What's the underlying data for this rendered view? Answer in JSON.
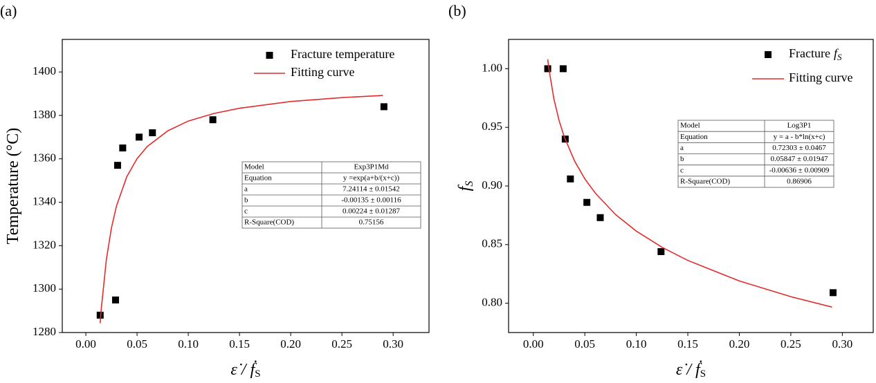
{
  "chart_data": [
    {
      "type": "scatter",
      "panel_label": "(a)",
      "xlabel": {
        "text": "ε̇ / ḟ",
        "sub": "S"
      },
      "ylabel": {
        "text": "Temperature (°C)"
      },
      "xlim": [
        -0.023,
        0.335
      ],
      "xticks": [
        {
          "value": 0,
          "label": "0.00"
        },
        0.05,
        {
          "value": 0.1,
          "label": "0.10"
        },
        0.15,
        {
          "value": 0.2,
          "label": "0.20"
        },
        0.25,
        {
          "value": 0.3,
          "label": "0.30"
        }
      ],
      "ylim": [
        1280,
        1415
      ],
      "yticks": [
        1280,
        1300,
        1320,
        1340,
        1360,
        1380,
        1400
      ],
      "grid": false,
      "legend": "upper right",
      "series": [
        {
          "name": "Fracture temperature",
          "color": "#000000",
          "marker": "square",
          "x": [
            0.014,
            0.029,
            0.031,
            0.036,
            0.052,
            0.065,
            0.124,
            0.291
          ],
          "values": [
            1288,
            1295,
            1357,
            1365,
            1370,
            1372,
            1378,
            1384
          ]
        },
        {
          "name": "Fitting curve",
          "type": "line",
          "color": "#e32b2b",
          "x": [
            0.014,
            0.015,
            0.02,
            0.025,
            0.03,
            0.04,
            0.05,
            0.06,
            0.08,
            0.1,
            0.125,
            0.15,
            0.2,
            0.25,
            0.29
          ],
          "values": [
            1284.3,
            1290.6,
            1313.5,
            1328.2,
            1338.4,
            1351.8,
            1360.1,
            1365.7,
            1372.9,
            1377.4,
            1380.9,
            1383.3,
            1386.4,
            1388.2,
            1389.2
          ]
        }
      ],
      "fit_table": [
        [
          "Model",
          "Exp3P1Md"
        ],
        [
          "Equation",
          "y =exp(a+b/(x+c))"
        ],
        [
          "a",
          "7.24114 ± 0.01542"
        ],
        [
          "b",
          "-0.00135 ± 0.00116"
        ],
        [
          "c",
          "0.00224 ± 0.01287"
        ],
        [
          "R-Square(COD)",
          "0.75156"
        ]
      ]
    },
    {
      "type": "scatter",
      "panel_label": "(b)",
      "xlabel": {
        "text": "ε̇ / ḟ",
        "sub": "S"
      },
      "ylabel": {
        "text": "f",
        "sub": "S"
      },
      "xlim": [
        -0.024,
        0.33
      ],
      "xticks": [
        {
          "value": 0,
          "label": "0.00"
        },
        0.05,
        {
          "value": 0.1,
          "label": "0.10"
        },
        0.15,
        {
          "value": 0.2,
          "label": "0.20"
        },
        0.25,
        {
          "value": 0.3,
          "label": "0.30"
        }
      ],
      "ylim": [
        0.775,
        1.025
      ],
      "yticks": [
        {
          "value": 0.8,
          "label": "0.80"
        },
        0.85,
        {
          "value": 0.9,
          "label": "0.90"
        },
        0.95,
        {
          "value": 1,
          "label": "1.00"
        }
      ],
      "grid": false,
      "legend": "upper right",
      "series": [
        {
          "name": "Fracture",
          "name_math": [
            "f",
            "S"
          ],
          "color": "#000000",
          "marker": "square",
          "x": [
            0.014,
            0.029,
            0.031,
            0.036,
            0.052,
            0.065,
            0.124,
            0.291
          ],
          "values": [
            1.0,
            1.0,
            0.94,
            0.906,
            0.886,
            0.873,
            0.844,
            0.809
          ]
        },
        {
          "name": "Fitting curve",
          "type": "line",
          "color": "#e32b2b",
          "x": [
            0.014,
            0.015,
            0.02,
            0.025,
            0.03,
            0.04,
            0.05,
            0.06,
            0.08,
            0.1,
            0.125,
            0.15,
            0.2,
            0.25,
            0.29
          ],
          "values": [
            1.008,
            1.0008,
            0.9742,
            0.9559,
            0.942,
            0.9214,
            0.9061,
            0.8941,
            0.8755,
            0.8615,
            0.8477,
            0.8365,
            0.819,
            0.8056,
            0.7967
          ]
        }
      ],
      "fit_table": [
        [
          "Model",
          "Log3P1"
        ],
        [
          "Equation",
          "y = a - b*ln(x+c)"
        ],
        [
          "a",
          "0.72303 ± 0.0467"
        ],
        [
          "b",
          "0.05847 ± 0.01947"
        ],
        [
          "c",
          "-0.00636 ± 0.00909"
        ],
        [
          "R-Square(COD)",
          "0.86906"
        ]
      ]
    }
  ]
}
